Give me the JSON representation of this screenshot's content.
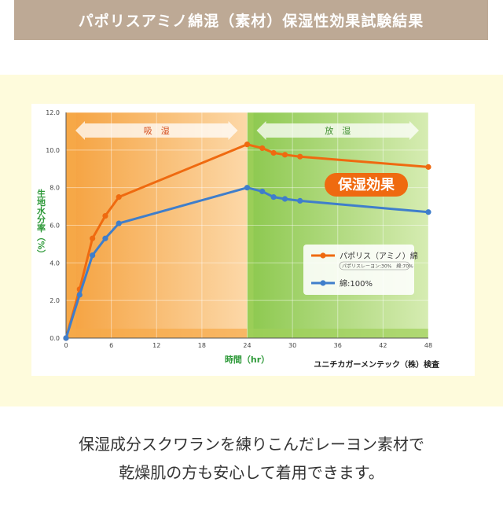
{
  "header": {
    "title": "パポリスアミノ綿混（素材）保湿性効果試験結果"
  },
  "chart_data": {
    "type": "line",
    "xlabel": "時間（hr）",
    "ylabel": "生地水分率（%）",
    "xlim": [
      0,
      48
    ],
    "ylim": [
      0,
      12
    ],
    "xticks": [
      0,
      6,
      12,
      18,
      24,
      30,
      36,
      42,
      48
    ],
    "yticks": [
      0.0,
      2.0,
      4.0,
      6.0,
      8.0,
      10.0,
      12.0
    ],
    "ytick_labels": [
      "0.0",
      "2.0",
      "4.0",
      "6.0",
      "8.0",
      "10.0",
      "12.0"
    ],
    "grid": true,
    "phases": [
      {
        "label": "吸　湿",
        "from": 0,
        "to": 24,
        "color": "#f6a949"
      },
      {
        "label": "放　湿",
        "from": 24,
        "to": 48,
        "color": "#9fd05a"
      }
    ],
    "series": [
      {
        "name": "パポリス（アミノ）綿",
        "sub": "パポリスレーヨン:30%　綿:70%",
        "color": "#ef6a10",
        "x": [
          0,
          1.8,
          3.5,
          5.2,
          7,
          24,
          26,
          27.5,
          29,
          31,
          48
        ],
        "y": [
          0,
          2.6,
          5.3,
          6.5,
          7.5,
          10.3,
          10.1,
          9.85,
          9.75,
          9.65,
          9.1
        ]
      },
      {
        "name": "綿:100%",
        "color": "#3f7ecb",
        "x": [
          0,
          1.8,
          3.5,
          5.2,
          7,
          24,
          26,
          27.5,
          29,
          31,
          48
        ],
        "y": [
          0,
          2.3,
          4.4,
          5.3,
          6.1,
          8.0,
          7.8,
          7.5,
          7.4,
          7.3,
          6.7
        ]
      }
    ],
    "annotation": "保湿効果",
    "source": "ユニチカガーメンテック（株）検査",
    "colors": {
      "axis_label": "#2f9a3a",
      "annotation_bg": "#ef6a10"
    }
  },
  "caption": {
    "line1": "保湿成分スクワランを練りこんだレーヨン素材で",
    "line2": "乾燥肌の方も安心して着用できます。"
  }
}
